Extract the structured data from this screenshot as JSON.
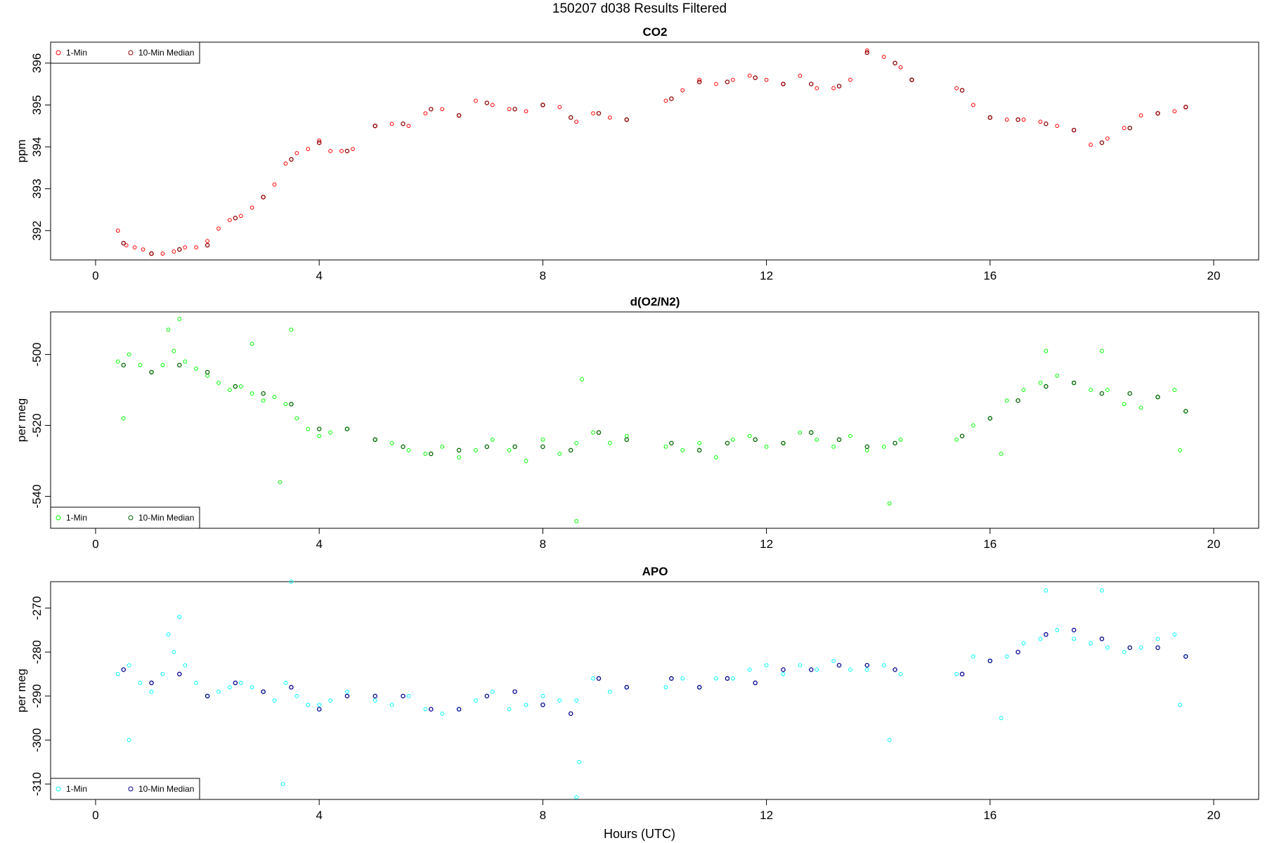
{
  "title": "150207   d038   Results Filtered",
  "xlabel": "Hours (UTC)",
  "colors": {
    "co2_point": "#ff0000",
    "co2_median": "#8b0000",
    "o2_point": "#00ff00",
    "o2_median": "#006400",
    "apo_point": "#00ffff",
    "apo_median": "#00008b"
  },
  "chart_data": [
    {
      "type": "scatter",
      "title": "CO2",
      "ylabel": "ppm",
      "xlabel": "",
      "xlim": [
        0,
        20
      ],
      "ylim": [
        391.3,
        396.5
      ],
      "xticks": [
        0,
        4,
        8,
        12,
        16,
        20
      ],
      "yticks": [
        392,
        393,
        394,
        395,
        396
      ],
      "legend_position": "top-left",
      "legend": [
        "1-Min",
        "10-Min Median"
      ],
      "grid": false,
      "series": [
        {
          "name": "1-Min",
          "x": [
            0.4,
            0.55,
            0.7,
            0.85,
            1.0,
            1.2,
            1.4,
            1.6,
            1.8,
            2.0,
            2.2,
            2.4,
            2.6,
            2.8,
            3.0,
            3.2,
            3.4,
            3.6,
            3.8,
            4.0,
            4.2,
            4.4,
            4.6,
            5.0,
            5.3,
            5.6,
            5.9,
            6.2,
            6.5,
            6.8,
            7.1,
            7.4,
            7.7,
            8.0,
            8.3,
            8.6,
            8.9,
            9.2,
            9.5,
            10.2,
            10.5,
            10.8,
            11.1,
            11.4,
            11.7,
            12.0,
            12.3,
            12.6,
            12.9,
            13.2,
            13.5,
            13.8,
            14.1,
            14.4,
            14.6,
            15.4,
            15.7,
            16.0,
            16.3,
            16.6,
            16.9,
            17.2,
            17.5,
            17.8,
            18.1,
            18.4,
            18.7,
            19.0,
            19.3,
            19.5
          ],
          "y": [
            392.0,
            391.65,
            391.6,
            391.55,
            391.45,
            391.45,
            391.5,
            391.6,
            391.6,
            391.75,
            392.05,
            392.25,
            392.35,
            392.55,
            392.8,
            393.1,
            393.6,
            393.85,
            393.95,
            394.15,
            393.9,
            393.9,
            393.95,
            394.5,
            394.55,
            394.5,
            394.8,
            394.9,
            394.75,
            395.1,
            395.0,
            394.9,
            394.85,
            395.0,
            394.95,
            394.6,
            394.8,
            394.7,
            394.65,
            395.1,
            395.35,
            395.6,
            395.5,
            395.6,
            395.7,
            395.6,
            395.5,
            395.7,
            395.4,
            395.4,
            395.6,
            396.3,
            396.15,
            395.9,
            395.6,
            395.4,
            395.0,
            394.7,
            394.65,
            394.65,
            394.6,
            394.5,
            394.4,
            394.05,
            394.2,
            394.45,
            394.75,
            394.8,
            394.85,
            394.95
          ]
        },
        {
          "name": "10-Min Median",
          "x": [
            0.5,
            1.0,
            1.5,
            2.0,
            2.5,
            3.0,
            3.5,
            4.0,
            4.5,
            5.0,
            5.5,
            6.0,
            6.5,
            7.0,
            7.5,
            8.0,
            8.5,
            9.0,
            9.5,
            10.3,
            10.8,
            11.3,
            11.8,
            12.3,
            12.8,
            13.3,
            13.8,
            14.3,
            14.6,
            15.5,
            16.0,
            16.5,
            17.0,
            17.5,
            18.0,
            18.5,
            19.0,
            19.5
          ],
          "y": [
            391.7,
            391.45,
            391.55,
            391.65,
            392.3,
            392.8,
            393.7,
            394.1,
            393.9,
            394.5,
            394.55,
            394.9,
            394.75,
            395.05,
            394.9,
            395.0,
            394.7,
            394.8,
            394.65,
            395.15,
            395.55,
            395.55,
            395.65,
            395.5,
            395.5,
            395.45,
            396.25,
            396.0,
            395.6,
            395.35,
            394.7,
            394.65,
            394.55,
            394.4,
            394.1,
            394.45,
            394.8,
            394.95
          ]
        }
      ]
    },
    {
      "type": "scatter",
      "title": "d(O2/N2)",
      "ylabel": "per meg",
      "xlabel": "",
      "xlim": [
        0,
        20
      ],
      "ylim": [
        -549,
        -488
      ],
      "xticks": [
        0,
        4,
        8,
        12,
        16,
        20
      ],
      "yticks": [
        -500,
        -520,
        -540
      ],
      "legend_position": "bottom-left",
      "legend": [
        "1-Min",
        "10-Min Median"
      ],
      "grid": false,
      "series": [
        {
          "name": "1-Min",
          "x": [
            0.4,
            0.6,
            0.8,
            1.0,
            1.2,
            1.4,
            1.6,
            1.8,
            2.0,
            2.2,
            2.4,
            2.6,
            2.8,
            3.0,
            3.2,
            3.4,
            3.6,
            3.8,
            4.0,
            4.2,
            4.5,
            5.0,
            5.3,
            5.6,
            5.9,
            6.2,
            6.5,
            6.8,
            7.1,
            7.4,
            7.7,
            8.0,
            8.3,
            8.6,
            8.9,
            9.2,
            9.5,
            10.2,
            10.5,
            10.8,
            11.1,
            11.4,
            11.7,
            12.0,
            12.3,
            12.6,
            12.9,
            13.2,
            13.5,
            13.8,
            14.1,
            14.4,
            15.4,
            15.7,
            16.0,
            16.3,
            16.6,
            16.9,
            17.2,
            17.5,
            17.8,
            18.1,
            18.4,
            18.7,
            19.0,
            19.3,
            19.5,
            0.5,
            1.3,
            1.5,
            2.8,
            3.3,
            3.5,
            8.6,
            8.7,
            14.2,
            16.2,
            17.0,
            18.0,
            19.4
          ],
          "y": [
            -502,
            -500,
            -503,
            -505,
            -503,
            -499,
            -502,
            -504,
            -506,
            -508,
            -510,
            -509,
            -511,
            -513,
            -512,
            -514,
            -518,
            -521,
            -523,
            -522,
            -521,
            -524,
            -525,
            -527,
            -528,
            -526,
            -529,
            -527,
            -524,
            -527,
            -530,
            -524,
            -528,
            -525,
            -522,
            -525,
            -523,
            -526,
            -527,
            -525,
            -529,
            -524,
            -523,
            -526,
            -525,
            -522,
            -524,
            -526,
            -523,
            -527,
            -526,
            -524,
            -524,
            -520,
            -518,
            -513,
            -510,
            -508,
            -506,
            -508,
            -510,
            -510,
            -514,
            -515,
            -512,
            -510,
            -516,
            -518,
            -493,
            -490,
            -497,
            -536,
            -493,
            -547,
            -507,
            -542,
            -528,
            -499,
            -499,
            -527
          ]
        },
        {
          "name": "10-Min Median",
          "x": [
            0.5,
            1.0,
            1.5,
            2.0,
            2.5,
            3.0,
            3.5,
            4.0,
            4.5,
            5.0,
            5.5,
            6.0,
            6.5,
            7.0,
            7.5,
            8.0,
            8.5,
            9.0,
            9.5,
            10.3,
            10.8,
            11.3,
            11.8,
            12.3,
            12.8,
            13.3,
            13.8,
            14.3,
            15.5,
            16.0,
            16.5,
            17.0,
            17.5,
            18.0,
            18.5,
            19.0,
            19.5
          ],
          "y": [
            -503,
            -505,
            -503,
            -505,
            -509,
            -511,
            -514,
            -521,
            -521,
            -524,
            -526,
            -528,
            -527,
            -526,
            -526,
            -526,
            -527,
            -522,
            -524,
            -525,
            -527,
            -525,
            -524,
            -525,
            -522,
            -524,
            -526,
            -525,
            -523,
            -518,
            -513,
            -509,
            -508,
            -511,
            -511,
            -512,
            -516
          ]
        }
      ]
    },
    {
      "type": "scatter",
      "title": "APO",
      "ylabel": "per meg",
      "xlabel": "Hours (UTC)",
      "xlim": [
        0,
        20
      ],
      "ylim": [
        -313.5,
        -264
      ],
      "xticks": [
        0,
        4,
        8,
        12,
        16,
        20
      ],
      "yticks": [
        -270,
        -280,
        -290,
        -300,
        -310
      ],
      "legend_position": "bottom-left",
      "legend": [
        "1-Min",
        "10-Min Median"
      ],
      "grid": false,
      "series": [
        {
          "name": "1-Min",
          "x": [
            0.4,
            0.6,
            0.8,
            1.0,
            1.2,
            1.4,
            1.6,
            1.8,
            2.0,
            2.2,
            2.4,
            2.6,
            2.8,
            3.0,
            3.2,
            3.4,
            3.6,
            3.8,
            4.0,
            4.2,
            4.5,
            5.0,
            5.3,
            5.6,
            5.9,
            6.2,
            6.5,
            6.8,
            7.1,
            7.4,
            7.7,
            8.0,
            8.3,
            8.6,
            8.9,
            9.2,
            9.5,
            10.2,
            10.5,
            10.8,
            11.1,
            11.4,
            11.7,
            12.0,
            12.3,
            12.6,
            12.9,
            13.2,
            13.5,
            13.8,
            14.1,
            14.4,
            15.4,
            15.7,
            16.0,
            16.3,
            16.6,
            16.9,
            17.2,
            17.5,
            17.8,
            18.1,
            18.4,
            18.7,
            19.0,
            19.3,
            19.5,
            0.6,
            1.3,
            1.5,
            3.35,
            3.5,
            8.6,
            8.65,
            14.2,
            16.2,
            17.0,
            18.0,
            19.4
          ],
          "y": [
            -285,
            -283,
            -287,
            -289,
            -285,
            -280,
            -283,
            -287,
            -290,
            -289,
            -288,
            -287,
            -288,
            -289,
            -291,
            -287,
            -290,
            -292,
            -292,
            -291,
            -289,
            -291,
            -292,
            -290,
            -293,
            -294,
            -293,
            -291,
            -289,
            -293,
            -292,
            -290,
            -291,
            -291,
            -286,
            -289,
            -288,
            -288,
            -286,
            -288,
            -286,
            -286,
            -284,
            -283,
            -285,
            -283,
            -284,
            -282,
            -284,
            -284,
            -283,
            -285,
            -285,
            -281,
            -282,
            -281,
            -278,
            -277,
            -275,
            -277,
            -278,
            -279,
            -280,
            -279,
            -277,
            -276,
            -281,
            -300,
            -276,
            -272,
            -310,
            -264,
            -313,
            -305,
            -300,
            -295,
            -266,
            -266,
            -292
          ]
        },
        {
          "name": "10-Min Median",
          "x": [
            0.5,
            1.0,
            1.5,
            2.0,
            2.5,
            3.0,
            3.5,
            4.0,
            4.5,
            5.0,
            5.5,
            6.0,
            6.5,
            7.0,
            7.5,
            8.0,
            8.5,
            9.0,
            9.5,
            10.3,
            10.8,
            11.3,
            11.8,
            12.3,
            12.8,
            13.3,
            13.8,
            14.3,
            15.5,
            16.0,
            16.5,
            17.0,
            17.5,
            18.0,
            18.5,
            19.0,
            19.5
          ],
          "y": [
            -284,
            -287,
            -285,
            -290,
            -287,
            -289,
            -288,
            -293,
            -290,
            -290,
            -290,
            -293,
            -293,
            -290,
            -289,
            -292,
            -294,
            -286,
            -288,
            -286,
            -288,
            -286,
            -287,
            -284,
            -284,
            -283,
            -283,
            -284,
            -285,
            -282,
            -280,
            -276,
            -275,
            -277,
            -279,
            -279,
            -281
          ]
        }
      ]
    }
  ]
}
